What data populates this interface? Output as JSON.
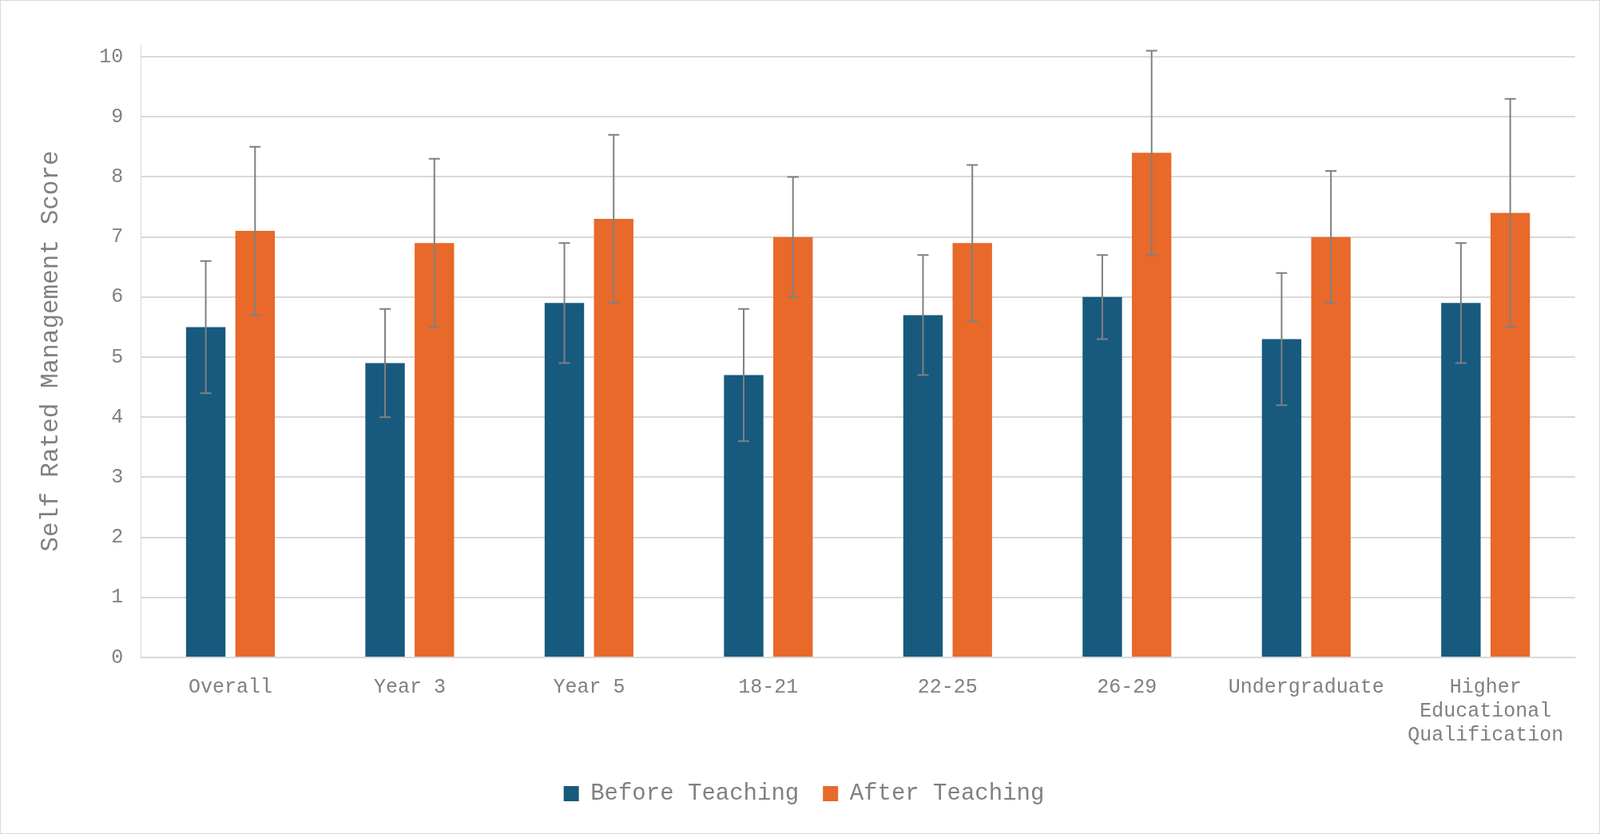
{
  "chart_data": {
    "type": "bar",
    "y_label": "Self Rated Management Score",
    "categories": [
      "Overall",
      "Year 3",
      "Year 5",
      "18-21",
      "22-25",
      "26-29",
      "Undergraduate",
      "Higher Educational Qualification"
    ],
    "series": [
      {
        "name": "Before Teaching",
        "color": "#175a7e",
        "values": [
          5.5,
          4.9,
          5.9,
          4.7,
          5.7,
          6.0,
          5.3,
          5.9
        ],
        "errors": [
          1.1,
          0.9,
          1.0,
          1.1,
          1.0,
          0.7,
          1.1,
          1.0
        ]
      },
      {
        "name": "After Teaching",
        "color": "#e8692a",
        "values": [
          7.1,
          6.9,
          7.3,
          7.0,
          6.9,
          8.4,
          7.0,
          7.4
        ],
        "errors": [
          1.4,
          1.4,
          1.4,
          1.0,
          1.3,
          1.7,
          1.1,
          1.9
        ]
      }
    ],
    "ylim": [
      0,
      10.2
    ],
    "yticks": [
      0,
      1,
      2,
      3,
      4,
      5,
      6,
      7,
      8,
      9,
      10
    ],
    "grid": true,
    "legend": "bottom"
  }
}
